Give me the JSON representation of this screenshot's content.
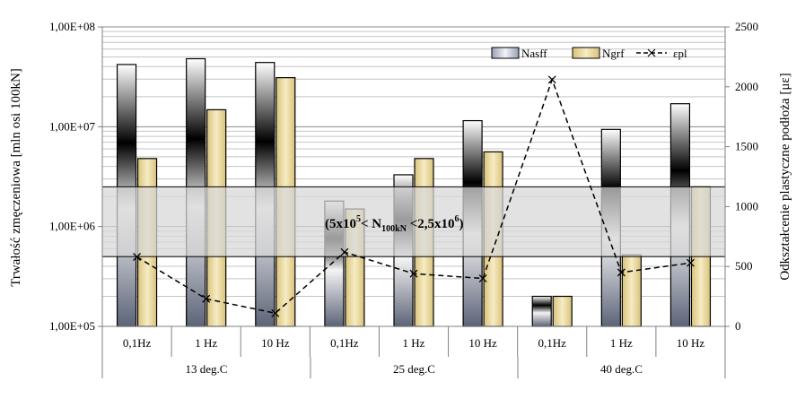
{
  "chart_data": {
    "type": "bar",
    "groups": [
      {
        "label": "13 deg.C",
        "categories": [
          "0,1Hz",
          "1 Hz",
          "10 Hz"
        ]
      },
      {
        "label": "25 deg.C",
        "categories": [
          "0,1Hz",
          "1 Hz",
          "10 Hz"
        ]
      },
      {
        "label": "40 deg.C",
        "categories": [
          "0,1Hz",
          "1 Hz",
          "10 Hz"
        ]
      }
    ],
    "series": [
      {
        "name": "Nasff",
        "axis": "left",
        "kind": "bar",
        "color": "#000000",
        "values": [
          42000000,
          48000000,
          44000000,
          1800000,
          3300000,
          11500000,
          200000,
          9400000,
          17000000
        ]
      },
      {
        "name": "Ngrf",
        "axis": "left",
        "kind": "bar",
        "color": "#e8d79a",
        "values": [
          4800000,
          14800000,
          31000000,
          1500000,
          4800000,
          5600000,
          200000,
          520000,
          2500000
        ]
      },
      {
        "name": "εpl",
        "axis": "right",
        "kind": "line",
        "style": "dashed",
        "marker": "x",
        "color": "#000000",
        "values": [
          580,
          230,
          110,
          620,
          440,
          400,
          2060,
          450,
          530
        ]
      }
    ],
    "y_left": {
      "label": "Trwałość zmęczeniowa [mln osi 100kN]",
      "scale": "log",
      "min": 100000,
      "max": 100000000,
      "ticks": [
        100000,
        1000000,
        10000000,
        100000000
      ],
      "tick_labels": [
        "1,00E+05",
        "1,00E+06",
        "1,00E+07",
        "1,00E+08"
      ]
    },
    "y_right": {
      "label": "Odkształcenie plastyczne podłoża [με]",
      "min": 0,
      "max": 2500,
      "ticks": [
        0,
        500,
        1000,
        1500,
        2000,
        2500
      ],
      "tick_labels": [
        "0",
        "500",
        "1000",
        "1500",
        "2000",
        "2500"
      ]
    },
    "band": {
      "from": 500000,
      "to": 2500000
    },
    "annotation": {
      "prefix": "(5x10",
      "sup1": "5",
      "mid": "< N",
      "sub": "100kN",
      "mid2": " <2,5x10",
      "sup2": "6",
      "suffix": ")"
    },
    "legend": {
      "position": "top-right",
      "items": [
        "Nasff",
        "Ngrf",
        "εpl"
      ]
    },
    "grid": true
  }
}
